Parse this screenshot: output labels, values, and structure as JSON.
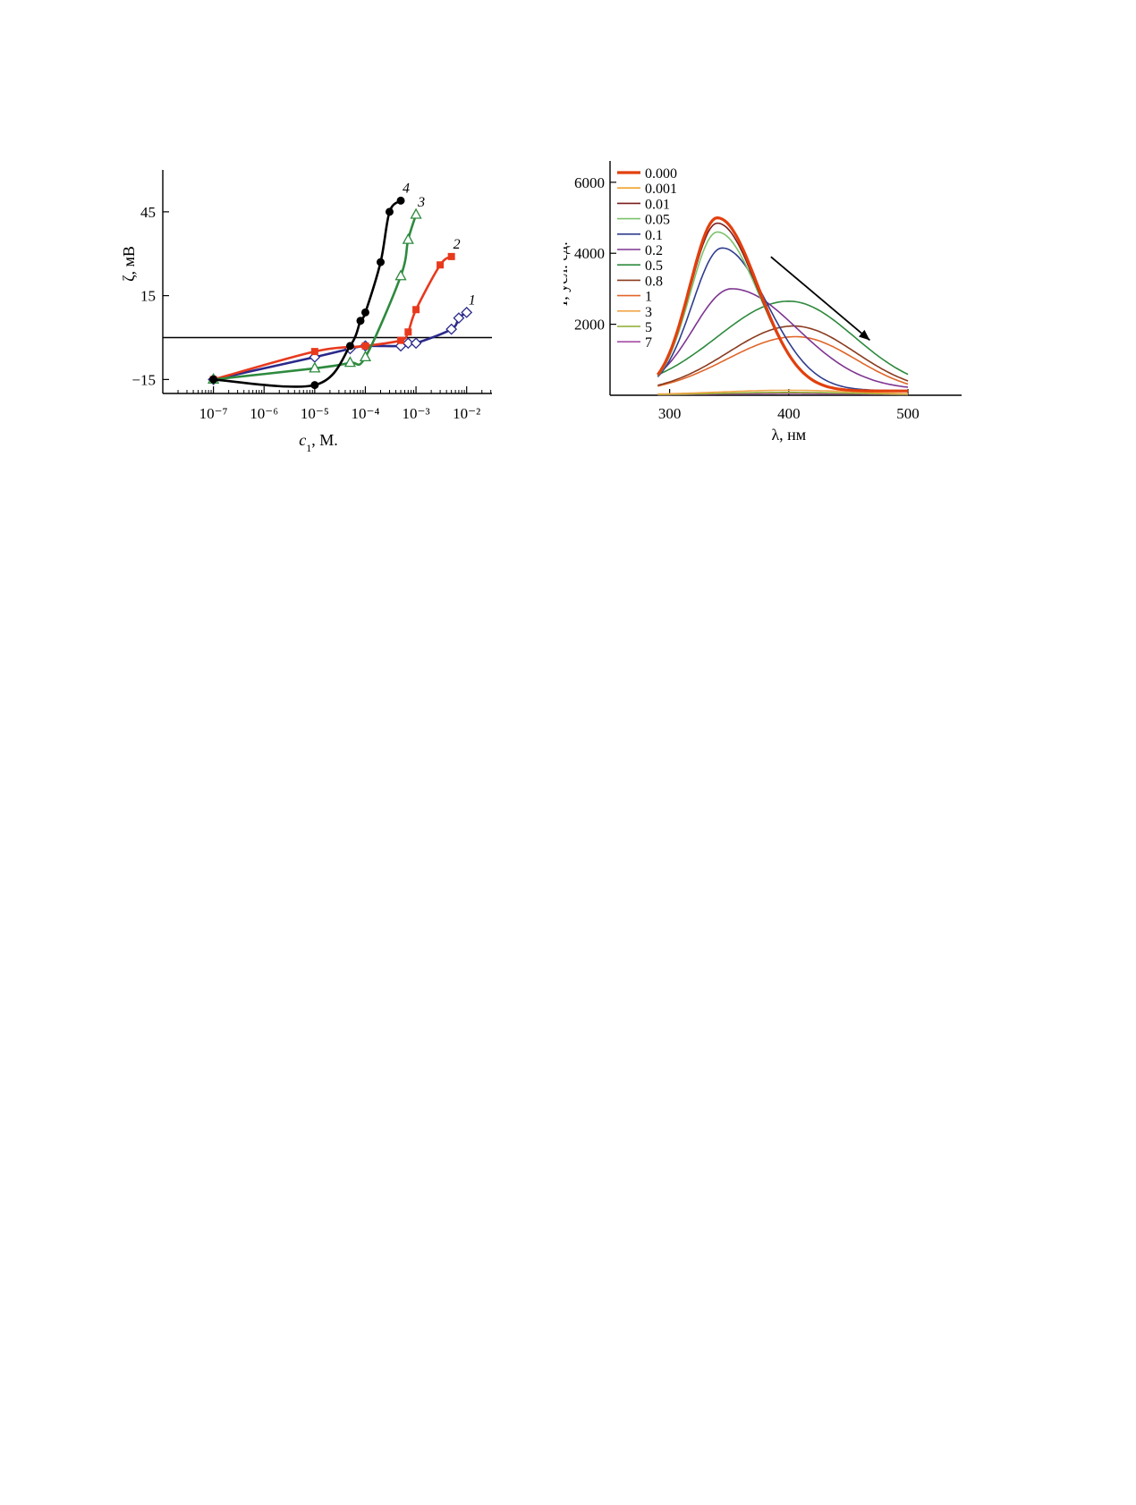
{
  "chart_data": [
    {
      "type": "scatter",
      "xscale": "log",
      "xlabel_var": "c",
      "xlabel_sub": "1",
      "xlabel_rest": ", М.",
      "ylabel": "ζ, мВ",
      "xlim_log10": [
        -8,
        -1.5
      ],
      "ylim": [
        -20,
        60
      ],
      "x_ticks": [
        {
          "exp": -7,
          "label": "10⁻⁷"
        },
        {
          "exp": -6,
          "label": "10⁻⁶"
        },
        {
          "exp": -5,
          "label": "10⁻⁵"
        },
        {
          "exp": -4,
          "label": "10⁻⁴"
        },
        {
          "exp": -3,
          "label": "10⁻³"
        },
        {
          "exp": -2,
          "label": "10⁻²"
        }
      ],
      "y_ticks": [
        {
          "value": 45,
          "label": "45"
        },
        {
          "value": 15,
          "label": "15"
        },
        {
          "value": -15,
          "label": "−15"
        }
      ],
      "reference_line_y": 0,
      "series": [
        {
          "name": "1",
          "color": "#2b2a8a",
          "marker": "diamond",
          "x": [
            1e-07,
            1e-05,
            5e-05,
            0.0001,
            0.0005,
            0.0007,
            0.001,
            0.005,
            0.007,
            0.01
          ],
          "y": [
            -15,
            -7,
            -4,
            -3,
            -3,
            -2,
            -2,
            3,
            7,
            9
          ]
        },
        {
          "name": "2",
          "color": "#e8391d",
          "marker": "square",
          "x": [
            1e-07,
            1e-05,
            0.0001,
            0.0005,
            0.0007,
            0.001,
            0.003,
            0.005
          ],
          "y": [
            -15,
            -5,
            -3,
            -1,
            2,
            10,
            26,
            29
          ]
        },
        {
          "name": "3",
          "color": "#2e8a3e",
          "marker": "triangle",
          "x": [
            1e-07,
            1e-05,
            5e-05,
            0.0001,
            0.0005,
            0.0007,
            0.001
          ],
          "y": [
            -15,
            -11,
            -9,
            -7,
            22,
            35,
            44
          ]
        },
        {
          "name": "4",
          "color": "#000000",
          "marker": "circle",
          "x": [
            1e-07,
            1e-05,
            5e-05,
            8e-05,
            0.0001,
            0.0002,
            0.0003,
            0.0005
          ],
          "y": [
            -15,
            -17,
            -3,
            6,
            9,
            27,
            45,
            49
          ]
        }
      ]
    },
    {
      "type": "line",
      "xlabel": "λ, нм",
      "ylabel_var": "I",
      "ylabel_rest": ", усл. ед.",
      "xlim": [
        250,
        545
      ],
      "ylim": [
        0,
        6600
      ],
      "x_ticks": [
        300,
        400,
        500
      ],
      "y_ticks": [
        2000,
        4000,
        6000
      ],
      "arrow": {
        "from": [
          385,
          3900
        ],
        "to": [
          468,
          1550
        ]
      },
      "series": [
        {
          "name": "0.000",
          "color": "#e2400e",
          "width": 3.2,
          "peak_x": 340,
          "peak_y": 5000,
          "left_w": 23,
          "right_w": 34,
          "floor": 120
        },
        {
          "name": "0.001",
          "color": "#f2a22b",
          "width": 1.6,
          "peak_x": 340,
          "peak_y": 4980,
          "left_w": 23,
          "right_w": 34,
          "floor": 120
        },
        {
          "name": "0.01",
          "color": "#7a1e1e",
          "width": 1.6,
          "peak_x": 340,
          "peak_y": 4850,
          "left_w": 23,
          "right_w": 34,
          "floor": 120
        },
        {
          "name": "0.05",
          "color": "#7cc26b",
          "width": 1.6,
          "peak_x": 340,
          "peak_y": 4600,
          "left_w": 23,
          "right_w": 35,
          "floor": 120
        },
        {
          "name": "0.1",
          "color": "#2f3d8e",
          "width": 1.6,
          "peak_x": 344,
          "peak_y": 4150,
          "left_w": 25,
          "right_w": 38,
          "floor": 130
        },
        {
          "name": "0.2",
          "color": "#7e3591",
          "width": 1.6,
          "peak_x": 352,
          "peak_y": 3000,
          "left_w": 32,
          "right_w": 55,
          "floor": 150
        },
        {
          "name": "0.5",
          "color": "#2e8a3e",
          "width": 1.6,
          "peak_x": 400,
          "peak_y": 2650,
          "left_w": 60,
          "right_w": 55,
          "floor": 100
        },
        {
          "name": "0.8",
          "color": "#8a3b1f",
          "width": 1.6,
          "peak_x": 404,
          "peak_y": 1950,
          "left_w": 55,
          "right_w": 52,
          "floor": 60
        },
        {
          "name": "1",
          "color": "#e0662a",
          "width": 1.6,
          "peak_x": 406,
          "peak_y": 1650,
          "left_w": 58,
          "right_w": 50,
          "floor": 40
        },
        {
          "name": "3",
          "color": "#f0a64a",
          "width": 1.6,
          "peak_x": 400,
          "peak_y": 140,
          "left_w": 60,
          "right_w": 60,
          "floor": 10
        },
        {
          "name": "5",
          "color": "#8bab2e",
          "width": 1.6,
          "peak_x": 400,
          "peak_y": 80,
          "left_w": 60,
          "right_w": 60,
          "floor": 5
        },
        {
          "name": "7",
          "color": "#a64ca6",
          "width": 1.6,
          "peak_x": 400,
          "peak_y": 50,
          "left_w": 60,
          "right_w": 60,
          "floor": 5
        }
      ]
    }
  ]
}
